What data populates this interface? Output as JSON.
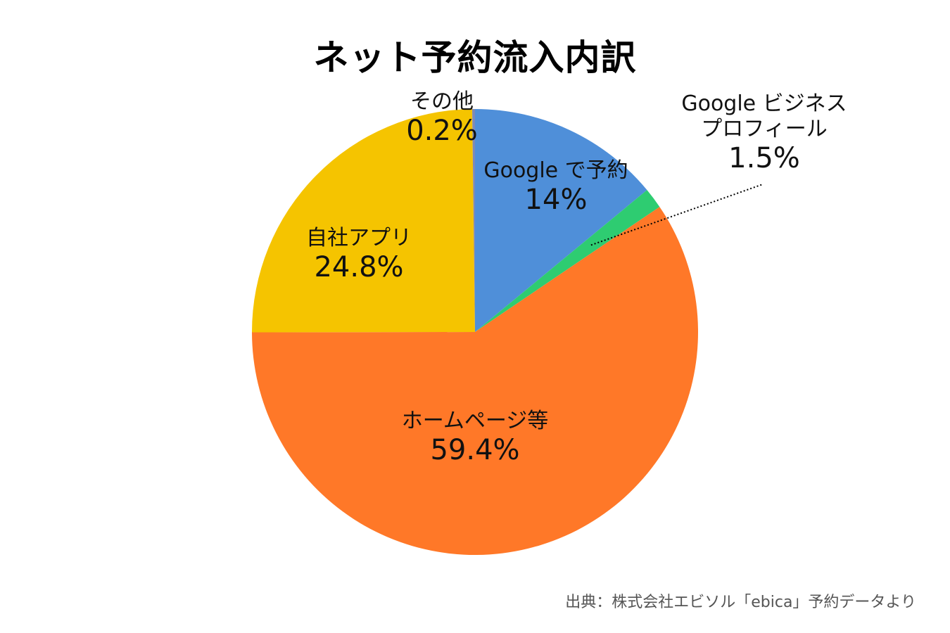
{
  "chart_data": {
    "type": "pie",
    "title": "ネット予約流入内訳",
    "slices": [
      {
        "label": "Google で予約",
        "value": 14,
        "display": "14%",
        "color": "#4F8FD9"
      },
      {
        "label": "Google ビジネスプロフィール",
        "label_lines": [
          "Google ビジネス",
          "プロフィール"
        ],
        "value": 1.5,
        "display": "1.5%",
        "color": "#2ECC71"
      },
      {
        "label": "ホームページ等",
        "value": 59.4,
        "display": "59.4%",
        "color": "#FF7828"
      },
      {
        "label": "自社アプリ",
        "value": 24.8,
        "display": "24.8%",
        "color": "#F5C400"
      },
      {
        "label": "その他",
        "value": 0.2,
        "display": "0.2%",
        "color": "#7D8AB8"
      }
    ],
    "start_angle_deg": 0,
    "direction": "clockwise",
    "legend": "none"
  },
  "source_note": "出典：株式会社エビソル「ebica」予約データより"
}
